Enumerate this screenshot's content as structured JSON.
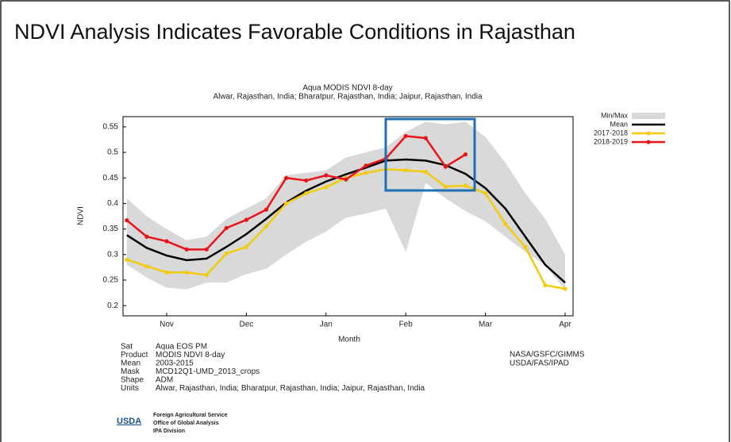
{
  "slide": {
    "title": "NDVI Analysis Indicates Favorable Conditions in Rajasthan"
  },
  "chart_data": {
    "type": "line",
    "title": "Aqua MODIS NDVI 8-day",
    "subtitle": "Alwar, Rajasthan, India; Bharatpur, Rajasthan, India; Jaipur, Rajasthan, India",
    "xlabel": "Month",
    "ylabel": "NDVI",
    "categories": [
      null,
      null,
      "Nov",
      null,
      null,
      null,
      "Dec",
      null,
      null,
      null,
      "Jan",
      null,
      null,
      null,
      "Feb",
      null,
      null,
      null,
      "Mar",
      null,
      null,
      null,
      "Apr"
    ],
    "ylim": [
      0.18,
      0.57
    ],
    "yticks": [
      0.2,
      0.25,
      0.3,
      0.35,
      0.4,
      0.45,
      0.5,
      0.55
    ],
    "grid": false,
    "legend": "right",
    "series": [
      {
        "name": "Min/Max",
        "color": "#d9d9d9",
        "kind": "band",
        "lower": [
          0.28,
          0.255,
          0.235,
          0.232,
          0.245,
          0.245,
          0.262,
          0.272,
          0.3,
          0.325,
          0.345,
          0.372,
          0.38,
          0.39,
          0.305,
          0.44,
          0.41,
          0.385,
          0.365,
          0.335,
          0.305,
          0.28,
          0.23
        ],
        "upper": [
          0.41,
          0.375,
          0.35,
          0.328,
          0.335,
          0.37,
          0.39,
          0.41,
          0.455,
          0.46,
          0.465,
          0.49,
          0.5,
          0.51,
          0.54,
          0.56,
          0.555,
          0.56,
          0.53,
          0.48,
          0.42,
          0.37,
          0.3
        ]
      },
      {
        "name": "Mean",
        "color": "#000000",
        "markers": false,
        "values": [
          0.338,
          0.313,
          0.298,
          0.289,
          0.292,
          0.315,
          0.34,
          0.37,
          0.402,
          0.425,
          0.443,
          0.457,
          0.47,
          0.484,
          0.486,
          0.484,
          0.475,
          0.458,
          0.43,
          0.39,
          0.335,
          0.28,
          0.245
        ]
      },
      {
        "name": "2017-2018",
        "color": "#f2cc0c",
        "markers": true,
        "values": [
          0.29,
          0.277,
          0.265,
          0.265,
          0.26,
          0.302,
          0.315,
          0.355,
          0.4,
          0.42,
          0.432,
          0.45,
          0.46,
          0.467,
          0.465,
          0.462,
          0.433,
          0.435,
          0.42,
          0.36,
          0.315,
          0.24,
          0.233
        ]
      },
      {
        "name": "2018-2019",
        "color": "#e8141a",
        "markers": true,
        "values": [
          0.367,
          0.335,
          0.326,
          0.31,
          0.31,
          0.352,
          0.368,
          0.388,
          0.45,
          0.445,
          0.455,
          0.447,
          0.474,
          0.488,
          0.532,
          0.528,
          0.472,
          0.496,
          null,
          null,
          null,
          null,
          null
        ]
      }
    ]
  },
  "metadata": [
    {
      "label": "Sat",
      "value": "Aqua EOS PM"
    },
    {
      "label": "Product",
      "value": "MODIS NDVI 8-day"
    },
    {
      "label": "Mean",
      "value": "2003-2015"
    },
    {
      "label": "Mask",
      "value": "MCD12Q1-UMD_2013_crops"
    },
    {
      "label": "Shape",
      "value": "ADM"
    },
    {
      "label": "Units",
      "value": "Alwar, Rajasthan, India; Bharatpur, Rajasthan, India; Jaipur, Rajasthan, India"
    }
  ],
  "credits": [
    "NASA/GSFC/GIMMS",
    "USDA/FAS/IPAD"
  ],
  "logo": {
    "mark": "USDA",
    "lines": [
      "Foreign Agricultural Service",
      "Office of Global Analysis",
      "IPA Division"
    ]
  }
}
